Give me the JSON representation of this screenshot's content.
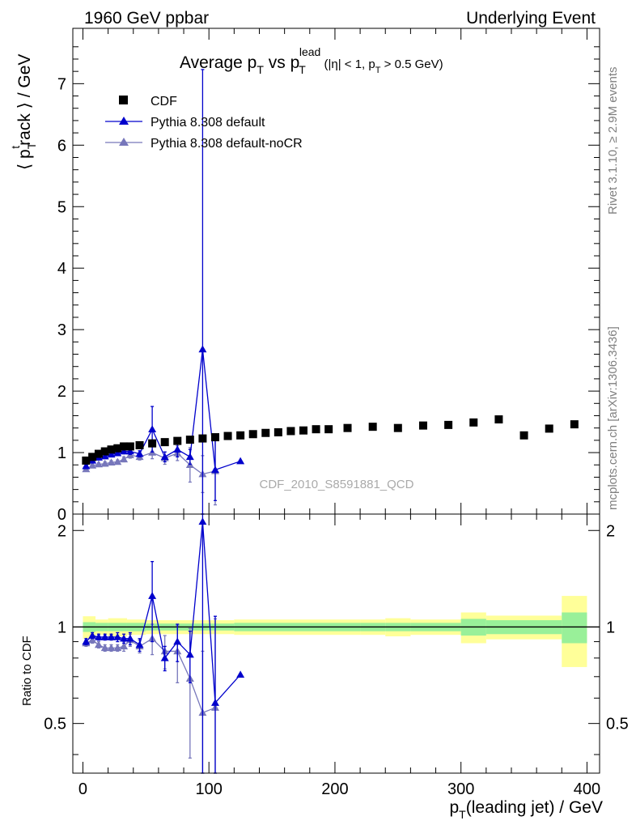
{
  "header": {
    "left": "1960 GeV ppbar",
    "right": "Underlying Event"
  },
  "side_labels": {
    "rivet": "Rivet 3.1.10, ≥ 2.9M events",
    "mcplots": "mcplots.cern.ch [arXiv:1306.3436]"
  },
  "watermark": "CDF_2010_S8591881_QCD",
  "colors": {
    "data": "#000000",
    "mc1": "#0000cc",
    "mc2": "#7777bb",
    "band_inner": "#99f099",
    "band_outer": "#ffff99"
  },
  "chart_data": [
    {
      "type": "scatter",
      "panel": "main",
      "title": "Average p_T vs p_T^lead (|η| < 1, p_T > 0.5 GeV)",
      "xlabel": "p_T(leading jet) / GeV",
      "ylabel": "⟨ p_T^track ⟩ / GeV",
      "xlim": [
        -8,
        410
      ],
      "ylim": [
        0,
        7.9
      ],
      "yticks": [
        0,
        1,
        2,
        3,
        4,
        5,
        6,
        7
      ],
      "legend_position": "top-left",
      "legend": [
        "CDF",
        "Pythia 8.308 default",
        "Pythia 8.308 default-noCR"
      ],
      "series": [
        {
          "name": "CDF",
          "marker": "square",
          "x": [
            2.5,
            7.5,
            12.5,
            17.5,
            22.5,
            27.5,
            32.5,
            37.5,
            45,
            55,
            65,
            75,
            85,
            95,
            105,
            115,
            125,
            135,
            145,
            155,
            165,
            175,
            185,
            195,
            210,
            230,
            250,
            270,
            290,
            310,
            330,
            350,
            370,
            390
          ],
          "y": [
            0.87,
            0.93,
            0.98,
            1.02,
            1.05,
            1.07,
            1.1,
            1.1,
            1.12,
            1.15,
            1.17,
            1.19,
            1.21,
            1.23,
            1.25,
            1.27,
            1.28,
            1.3,
            1.32,
            1.33,
            1.35,
            1.36,
            1.38,
            1.38,
            1.4,
            1.42,
            1.4,
            1.44,
            1.45,
            1.49,
            1.54,
            1.28,
            1.39,
            1.46
          ]
        },
        {
          "name": "Pythia 8.308 default",
          "marker": "triangle",
          "x": [
            2.5,
            7.5,
            12.5,
            17.5,
            22.5,
            27.5,
            32.5,
            37.5,
            45,
            55,
            65,
            75,
            85,
            95,
            105,
            125
          ],
          "y": [
            0.78,
            0.87,
            0.92,
            0.94,
            0.97,
            0.99,
            1.02,
            1.02,
            0.98,
            1.38,
            0.93,
            1.05,
            0.93,
            2.68,
            0.72,
            0.86
          ],
          "yerr": [
            0.02,
            0.02,
            0.03,
            0.03,
            0.03,
            0.04,
            0.04,
            0.05,
            0.05,
            0.37,
            0.08,
            0.12,
            0.12,
            4.55,
            0.5,
            0.0
          ]
        },
        {
          "name": "Pythia 8.308 default-noCR",
          "marker": "triangle",
          "x": [
            2.5,
            7.5,
            12.5,
            17.5,
            22.5,
            27.5,
            32.5,
            37.5,
            45,
            55,
            65,
            75,
            85,
            95,
            105
          ],
          "y": [
            0.73,
            0.79,
            0.81,
            0.82,
            0.84,
            0.85,
            0.89,
            0.96,
            0.93,
            1.0,
            0.91,
            0.99,
            0.8,
            0.65,
            0.7
          ],
          "yerr": [
            0.02,
            0.02,
            0.02,
            0.03,
            0.03,
            0.03,
            0.04,
            0.05,
            0.05,
            0.1,
            0.1,
            0.12,
            0.28,
            0.3,
            0.55
          ]
        }
      ]
    },
    {
      "type": "scatter",
      "panel": "ratio",
      "xlabel": "p_T(leading jet) / GeV",
      "ylabel": "Ratio to CDF",
      "xlim": [
        -8,
        410
      ],
      "ylim": [
        0.35,
        2.25
      ],
      "yticks": [
        0.5,
        1,
        2
      ],
      "xticks": [
        0,
        100,
        200,
        300,
        400
      ],
      "band_bins": [
        {
          "lo": 0,
          "hi": 10,
          "inner": 0.035,
          "outer": 0.08
        },
        {
          "lo": 10,
          "hi": 20,
          "inner": 0.03,
          "outer": 0.055
        },
        {
          "lo": 20,
          "hi": 35,
          "inner": 0.03,
          "outer": 0.065
        },
        {
          "lo": 35,
          "hi": 50,
          "inner": 0.03,
          "outer": 0.055
        },
        {
          "lo": 50,
          "hi": 120,
          "inner": 0.025,
          "outer": 0.05
        },
        {
          "lo": 120,
          "hi": 220,
          "inner": 0.03,
          "outer": 0.055
        },
        {
          "lo": 220,
          "hi": 240,
          "inner": 0.03,
          "outer": 0.055
        },
        {
          "lo": 240,
          "hi": 260,
          "inner": 0.03,
          "outer": 0.065
        },
        {
          "lo": 260,
          "hi": 300,
          "inner": 0.03,
          "outer": 0.055
        },
        {
          "lo": 300,
          "hi": 320,
          "inner": 0.06,
          "outer": 0.11
        },
        {
          "lo": 320,
          "hi": 340,
          "inner": 0.05,
          "outer": 0.085
        },
        {
          "lo": 340,
          "hi": 380,
          "inner": 0.05,
          "outer": 0.085
        },
        {
          "lo": 380,
          "hi": 400,
          "inner": 0.11,
          "outer": 0.25
        }
      ],
      "series": [
        {
          "name": "Pythia 8.308 default",
          "x": [
            2.5,
            7.5,
            12.5,
            17.5,
            22.5,
            27.5,
            32.5,
            37.5,
            45,
            55,
            65,
            75,
            85,
            95,
            105,
            125
          ],
          "y": [
            0.9,
            0.94,
            0.93,
            0.93,
            0.93,
            0.93,
            0.92,
            0.92,
            0.88,
            1.25,
            0.8,
            0.9,
            0.82,
            2.13,
            0.58,
            0.71
          ],
          "yerr": [
            0.02,
            0.02,
            0.02,
            0.02,
            0.02,
            0.03,
            0.03,
            0.04,
            0.04,
            0.35,
            0.07,
            0.12,
            0.15,
            3.5,
            0.5,
            0.0
          ]
        },
        {
          "name": "Pythia 8.308 default-noCR",
          "x": [
            2.5,
            7.5,
            12.5,
            17.5,
            22.5,
            27.5,
            32.5,
            37.5,
            45,
            55,
            65,
            75,
            85,
            95,
            105
          ],
          "y": [
            0.89,
            0.91,
            0.88,
            0.86,
            0.86,
            0.86,
            0.87,
            0.91,
            0.87,
            0.92,
            0.84,
            0.84,
            0.69,
            0.54,
            0.56
          ],
          "yerr": [
            0.02,
            0.02,
            0.02,
            0.02,
            0.02,
            0.02,
            0.03,
            0.04,
            0.04,
            0.1,
            0.1,
            0.17,
            0.3,
            0.3,
            0.5
          ]
        }
      ]
    }
  ]
}
